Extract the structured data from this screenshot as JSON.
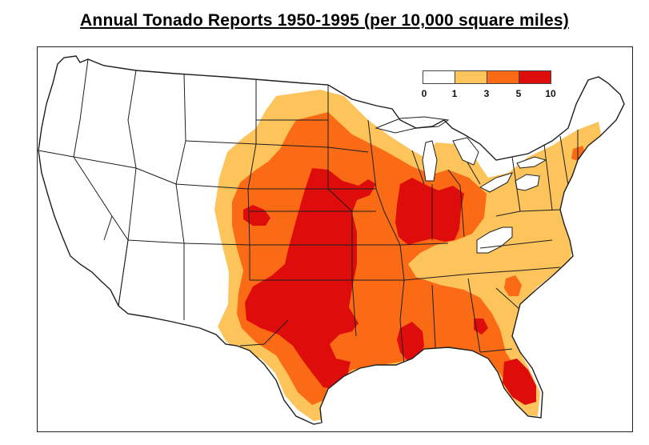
{
  "title": "Annual Tonado Reports 1950-1995 (per 10,000 square miles)",
  "legend": {
    "classes": [
      {
        "from": "0",
        "to": "1",
        "color": "#ffffff"
      },
      {
        "from": "1",
        "to": "3",
        "color": "#fdc45c"
      },
      {
        "from": "3",
        "to": "5",
        "color": "#fb6a14"
      },
      {
        "from": "5",
        "to": "10",
        "color": "#df0c0c"
      }
    ],
    "tick_labels": [
      "0",
      "1",
      "3",
      "5",
      "10"
    ]
  },
  "colors": {
    "band_1_3": "#fdc45c",
    "band_3_5": "#fb6a14",
    "band_5_10": "#df0c0c",
    "state_lines": "#1e1e1e",
    "background": "#ffffff"
  }
}
